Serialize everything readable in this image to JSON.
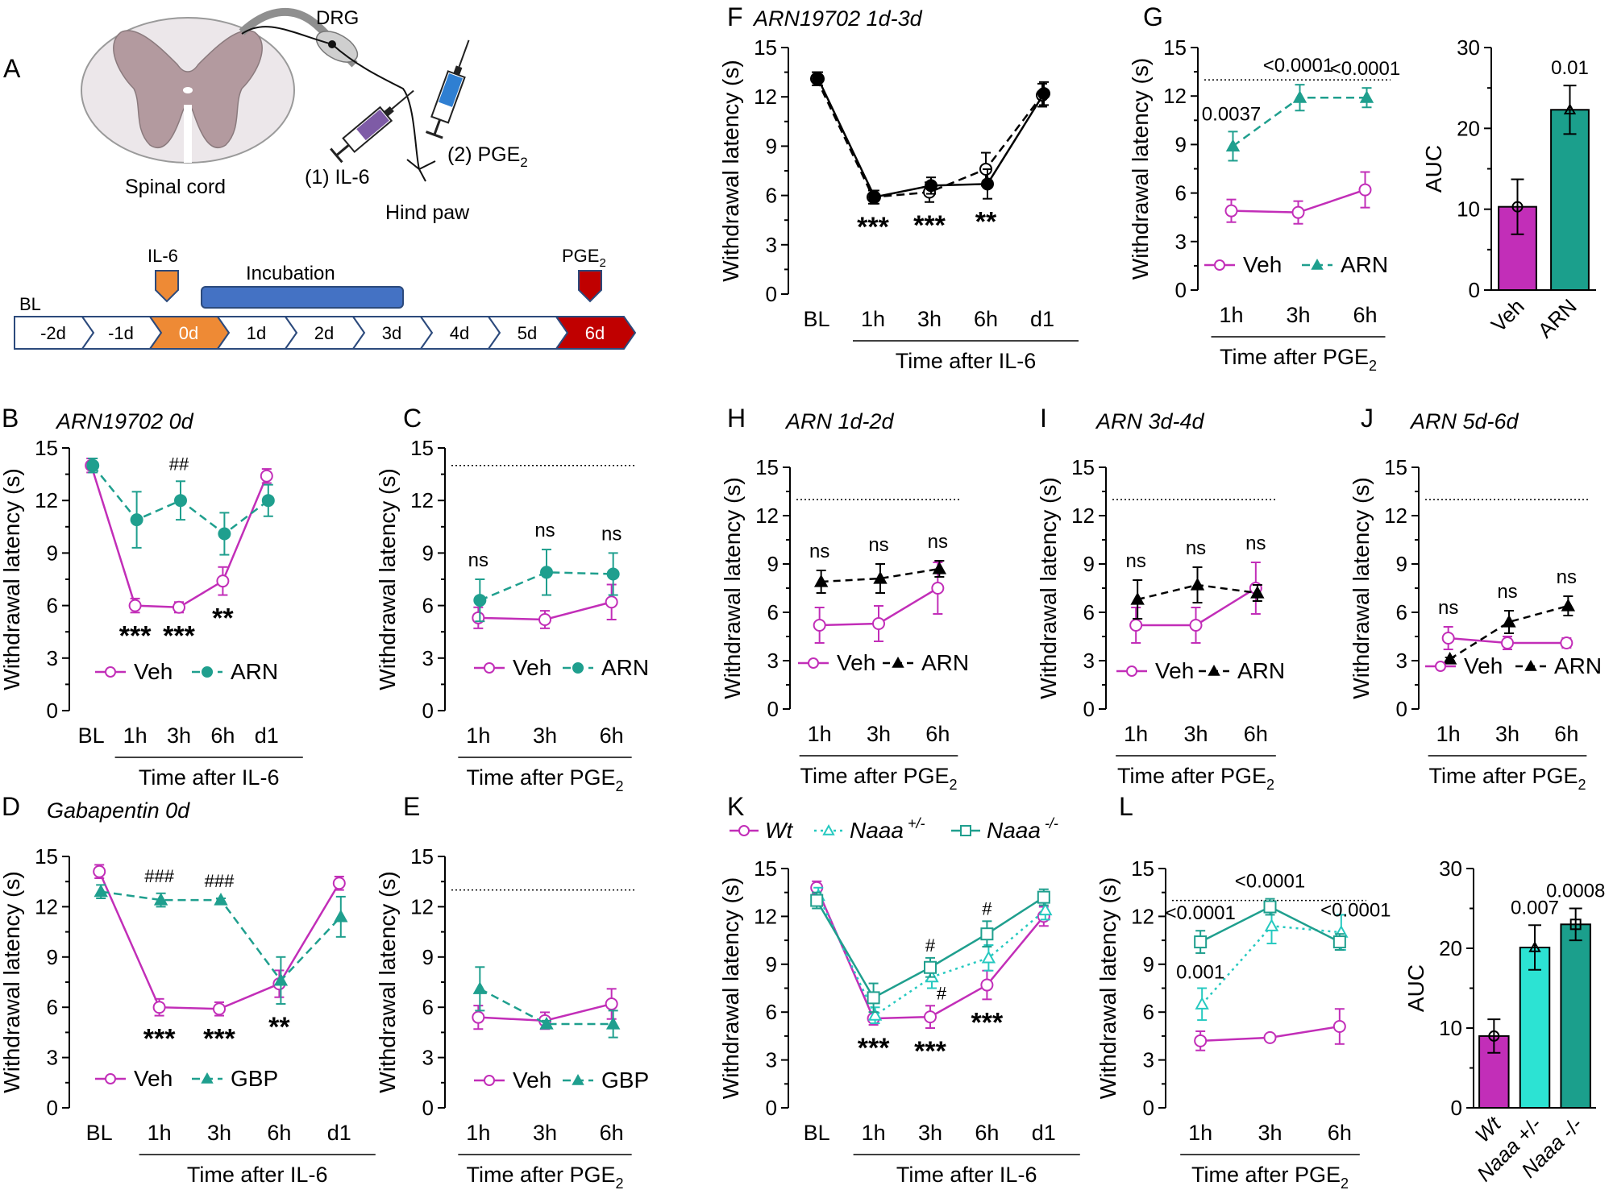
{
  "colors": {
    "veh": "#c22eb8",
    "arn": "#1f9f8e",
    "naaa_het": "#26c9c0",
    "naaa_ko": "#1f9f8e",
    "black": "#000000",
    "bar_veh": "#c22eb8",
    "bar_arn": "#1b9f8c",
    "bar_het": "#2ce3d3",
    "bar_ko": "#1b9f8c"
  },
  "panel_a": {
    "letter": "A",
    "labels": {
      "drg": "DRG",
      "spinal_cord": "Spinal cord",
      "il6_injection": "(1) IL-6",
      "pge2_injection": "(2) PGE",
      "pge2_sub": "2",
      "hind_paw": "Hind paw"
    },
    "timeline": {
      "bl": "BL",
      "il6": "IL-6",
      "incubation": "Incubation",
      "pge2": "PGE",
      "pge2_sub": "2",
      "days": [
        "-2d",
        "-1d",
        "0d",
        "1d",
        "2d",
        "3d",
        "4d",
        "5d",
        "6d"
      ]
    }
  },
  "chart_data": [
    {
      "id": "B",
      "type": "line",
      "letter": "B",
      "title": "ARN19702 0d",
      "ylabel": "Withdrawal latency (s)",
      "ylim": [
        0,
        15
      ],
      "yticks": [
        0,
        3,
        6,
        9,
        12,
        15
      ],
      "categories": [
        "BL",
        "1h",
        "3h",
        "6h",
        "d1"
      ],
      "xlabel": "Time after IL-6",
      "series": [
        {
          "name": "Veh",
          "values": [
            14.0,
            6.0,
            5.9,
            7.4,
            13.4
          ],
          "errors": [
            0.4,
            0.4,
            0.3,
            0.8,
            0.4
          ]
        },
        {
          "name": "ARN",
          "values": [
            14.0,
            10.9,
            12.0,
            10.1,
            12.0
          ],
          "errors": [
            0.4,
            1.6,
            1.1,
            1.2,
            0.9
          ]
        }
      ],
      "annotations": [
        {
          "x": "1h",
          "text": "***"
        },
        {
          "x": "3h",
          "text": "***"
        },
        {
          "x": "6h",
          "text": "**"
        },
        {
          "x": "3h",
          "text": "##"
        }
      ]
    },
    {
      "id": "C",
      "type": "line",
      "letter": "C",
      "title": "",
      "ylabel": "Withdrawal latency (s)",
      "ylim": [
        0,
        15
      ],
      "yticks": [
        0,
        3,
        6,
        9,
        12,
        15
      ],
      "categories": [
        "1h",
        "3h",
        "6h"
      ],
      "xlabel": "Time after PGE",
      "xlabel_sub": "2",
      "baseline": 14.0,
      "series": [
        {
          "name": "Veh",
          "values": [
            5.3,
            5.2,
            6.2
          ],
          "errors": [
            0.6,
            0.5,
            1.0
          ]
        },
        {
          "name": "ARN",
          "values": [
            6.3,
            7.9,
            7.8
          ],
          "errors": [
            1.2,
            1.3,
            1.2
          ]
        }
      ],
      "annotations": [
        {
          "x": "1h",
          "text": "ns"
        },
        {
          "x": "3h",
          "text": "ns"
        },
        {
          "x": "6h",
          "text": "ns"
        }
      ]
    },
    {
      "id": "D",
      "type": "line",
      "letter": "D",
      "title": "Gabapentin 0d",
      "ylabel": "Withdrawal latency (s)",
      "ylim": [
        0,
        15
      ],
      "yticks": [
        0,
        3,
        6,
        9,
        12,
        15
      ],
      "categories": [
        "BL",
        "1h",
        "3h",
        "6h",
        "d1"
      ],
      "xlabel": "Time after IL-6",
      "series": [
        {
          "name": "Veh",
          "values": [
            14.1,
            6.0,
            5.9,
            7.4,
            13.4
          ],
          "errors": [
            0.4,
            0.5,
            0.4,
            0.8,
            0.4
          ]
        },
        {
          "name": "GBP",
          "values": [
            12.9,
            12.4,
            12.4,
            7.6,
            11.4
          ],
          "errors": [
            0.4,
            0.4,
            0.1,
            1.4,
            1.2
          ]
        }
      ],
      "annotations": [
        {
          "x": "1h",
          "text": "***"
        },
        {
          "x": "3h",
          "text": "***"
        },
        {
          "x": "6h",
          "text": "**"
        },
        {
          "x": "1h",
          "text": "###"
        },
        {
          "x": "3h",
          "text": "###"
        }
      ]
    },
    {
      "id": "E",
      "type": "line",
      "letter": "E",
      "title": "",
      "ylabel": "Withdrawal latency (s)",
      "ylim": [
        0,
        15
      ],
      "yticks": [
        0,
        3,
        6,
        9,
        12,
        15
      ],
      "categories": [
        "1h",
        "3h",
        "6h"
      ],
      "xlabel": "Time after PGE",
      "xlabel_sub": "2",
      "baseline": 13.0,
      "series": [
        {
          "name": "Veh",
          "values": [
            5.4,
            5.2,
            6.2
          ],
          "errors": [
            0.7,
            0.5,
            0.9
          ]
        },
        {
          "name": "GBP",
          "values": [
            7.1,
            5.0,
            5.0
          ],
          "errors": [
            1.3,
            0.2,
            0.8
          ]
        }
      ],
      "annotations": []
    },
    {
      "id": "F",
      "type": "line",
      "letter": "F",
      "title": "ARN19702 1d-3d",
      "ylabel": "Withdrawal latency (s)",
      "ylim": [
        0,
        15
      ],
      "yticks": [
        0,
        3,
        6,
        9,
        12,
        15
      ],
      "categories": [
        "BL",
        "1h",
        "3h",
        "6h",
        "d1"
      ],
      "xlabel": "Time after IL-6",
      "series": [
        {
          "name": "Veh",
          "values": [
            13.1,
            5.9,
            6.2,
            7.6,
            12.1
          ],
          "errors": [
            0.4,
            0.4,
            0.6,
            1.0,
            0.7
          ]
        },
        {
          "name": "ARN",
          "values": [
            13.1,
            5.9,
            6.6,
            6.7,
            12.2
          ],
          "errors": [
            0.4,
            0.4,
            0.5,
            0.9,
            0.7
          ]
        }
      ],
      "annotations": [
        {
          "x": "1h",
          "text": "***"
        },
        {
          "x": "3h",
          "text": "***"
        },
        {
          "x": "6h",
          "text": "**"
        }
      ]
    },
    {
      "id": "G",
      "type": "line",
      "letter": "G",
      "title": "",
      "ylabel": "Withdrawal latency (s)",
      "ylim": [
        0,
        15
      ],
      "yticks": [
        0,
        3,
        6,
        9,
        12,
        15
      ],
      "categories": [
        "1h",
        "3h",
        "6h"
      ],
      "xlabel": "Time after PGE",
      "xlabel_sub": "2",
      "baseline": 13.0,
      "series": [
        {
          "name": "Veh",
          "values": [
            4.9,
            4.8,
            6.2
          ],
          "errors": [
            0.7,
            0.7,
            1.1
          ]
        },
        {
          "name": "ARN",
          "values": [
            8.9,
            11.9,
            11.9
          ],
          "errors": [
            0.9,
            0.8,
            0.6
          ]
        }
      ],
      "annotations": [
        {
          "x": "1h",
          "text": "0.0037"
        },
        {
          "x": "3h",
          "text": "<0.0001"
        },
        {
          "x": "6h",
          "text": "<0.0001"
        }
      ]
    },
    {
      "id": "G_auc",
      "type": "bar",
      "letter": "",
      "ylabel": "AUC",
      "ylim": [
        0,
        30
      ],
      "yticks": [
        0,
        10,
        20,
        30
      ],
      "categories": [
        "Veh",
        "ARN"
      ],
      "values": [
        10.3,
        22.3
      ],
      "errors": [
        3.4,
        3.0
      ],
      "annotations": [
        {
          "x": "ARN",
          "text": "0.01"
        }
      ]
    },
    {
      "id": "H",
      "type": "line",
      "letter": "H",
      "title": "ARN 1d-2d",
      "ylabel": "Withdrawal latency (s)",
      "ylim": [
        0,
        15
      ],
      "yticks": [
        0,
        3,
        6,
        9,
        12,
        15
      ],
      "categories": [
        "1h",
        "3h",
        "6h"
      ],
      "xlabel": "Time after PGE",
      "xlabel_sub": "2",
      "baseline": 13.0,
      "series": [
        {
          "name": "Veh",
          "values": [
            5.2,
            5.3,
            7.5
          ],
          "errors": [
            1.1,
            1.1,
            1.6
          ]
        },
        {
          "name": "ARN",
          "values": [
            7.9,
            8.1,
            8.7
          ],
          "errors": [
            0.7,
            0.9,
            0.5
          ]
        }
      ],
      "annotations": [
        {
          "x": "1h",
          "text": "ns"
        },
        {
          "x": "3h",
          "text": "ns"
        },
        {
          "x": "6h",
          "text": "ns"
        }
      ]
    },
    {
      "id": "I",
      "type": "line",
      "letter": "I",
      "title": "ARN 3d-4d",
      "ylabel": "Withdrawal latency (s)",
      "ylim": [
        0,
        15
      ],
      "yticks": [
        0,
        3,
        6,
        9,
        12,
        15
      ],
      "categories": [
        "1h",
        "3h",
        "6h"
      ],
      "xlabel": "Time after PGE",
      "xlabel_sub": "2",
      "baseline": 13.0,
      "series": [
        {
          "name": "Veh",
          "values": [
            5.2,
            5.2,
            7.5
          ],
          "errors": [
            1.1,
            1.1,
            1.6
          ]
        },
        {
          "name": "ARN",
          "values": [
            6.8,
            7.7,
            7.2
          ],
          "errors": [
            1.2,
            1.1,
            0.5
          ]
        }
      ],
      "annotations": [
        {
          "x": "1h",
          "text": "ns"
        },
        {
          "x": "3h",
          "text": "ns"
        },
        {
          "x": "6h",
          "text": "ns"
        }
      ]
    },
    {
      "id": "J",
      "type": "line",
      "letter": "J",
      "title": "ARN 5d-6d",
      "ylabel": "Withdrawal latency (s)",
      "ylim": [
        0,
        15
      ],
      "yticks": [
        0,
        3,
        6,
        9,
        12,
        15
      ],
      "categories": [
        "1h",
        "3h",
        "6h"
      ],
      "xlabel": "Time after PGE",
      "xlabel_sub": "2",
      "baseline": 13.0,
      "series": [
        {
          "name": "Veh",
          "values": [
            4.4,
            4.1,
            4.1
          ],
          "errors": [
            0.7,
            0.4,
            0.3
          ]
        },
        {
          "name": "ARN",
          "values": [
            3.1,
            5.4,
            6.4
          ],
          "errors": [
            0.1,
            0.7,
            0.6
          ]
        }
      ],
      "annotations": [
        {
          "x": "1h",
          "text": "ns"
        },
        {
          "x": "3h",
          "text": "ns"
        },
        {
          "x": "6h",
          "text": "ns"
        }
      ]
    },
    {
      "id": "K",
      "type": "line",
      "letter": "K",
      "title": "",
      "ylabel": "Withdrawal latency (s)",
      "ylim": [
        0,
        15
      ],
      "yticks": [
        0,
        3,
        6,
        9,
        12,
        15
      ],
      "categories": [
        "BL",
        "1h",
        "3h",
        "6h",
        "d1"
      ],
      "xlabel": "Time after IL-6",
      "legend": [
        {
          "name": "Wt"
        },
        {
          "name": "Naaa",
          "sup": "+/-"
        },
        {
          "name": "Naaa",
          "sup": "-/-"
        }
      ],
      "series": [
        {
          "name": "Wt",
          "values": [
            13.8,
            5.6,
            5.7,
            7.7,
            12.0
          ],
          "errors": [
            0.4,
            0.4,
            0.7,
            0.9,
            0.6
          ]
        },
        {
          "name": "Naaa +/-",
          "values": [
            13.3,
            5.8,
            8.2,
            9.4,
            12.4
          ],
          "errors": [
            0.5,
            0.5,
            0.7,
            0.8,
            0.6
          ]
        },
        {
          "name": "Naaa -/-",
          "values": [
            13.0,
            6.9,
            8.8,
            10.9,
            13.2
          ],
          "errors": [
            0.5,
            0.9,
            0.6,
            0.8,
            0.5
          ]
        }
      ],
      "annotations": [
        {
          "x": "1h",
          "text": "***"
        },
        {
          "x": "3h",
          "text": "***"
        },
        {
          "x": "6h",
          "text": "***"
        },
        {
          "x": "3h",
          "text": "#"
        },
        {
          "x": "3h",
          "text": "#"
        },
        {
          "x": "6h",
          "text": "#"
        }
      ]
    },
    {
      "id": "L",
      "type": "line",
      "letter": "L",
      "title": "",
      "ylabel": "Withdrawal latency (s)",
      "ylim": [
        0,
        15
      ],
      "yticks": [
        0,
        3,
        6,
        9,
        12,
        15
      ],
      "categories": [
        "1h",
        "3h",
        "6h"
      ],
      "xlabel": "Time after PGE",
      "xlabel_sub": "2",
      "baseline": 13.0,
      "series": [
        {
          "name": "Wt",
          "values": [
            4.2,
            4.4,
            5.1
          ],
          "errors": [
            0.6,
            0.1,
            1.1
          ]
        },
        {
          "name": "Naaa +/-",
          "values": [
            6.5,
            11.4,
            11.0
          ],
          "errors": [
            1.0,
            1.1,
            1.1
          ]
        },
        {
          "name": "Naaa -/-",
          "values": [
            10.4,
            12.6,
            10.4
          ],
          "errors": [
            0.7,
            0.5,
            0.5
          ]
        }
      ],
      "annotations": [
        {
          "x": "1h",
          "text": "<0.0001"
        },
        {
          "x": "3h",
          "text": "<0.0001"
        },
        {
          "x": "6h",
          "text": "<0.0001"
        },
        {
          "x": "1h",
          "text": "0.001"
        }
      ]
    },
    {
      "id": "L_auc",
      "type": "bar",
      "letter": "",
      "ylabel": "AUC",
      "ylim": [
        0,
        30
      ],
      "yticks": [
        0,
        10,
        20,
        30
      ],
      "categories": [
        "Wt",
        "Naaa +/-",
        "Naaa -/-"
      ],
      "values": [
        9.0,
        20.1,
        23.0
      ],
      "errors": [
        2.1,
        2.8,
        2.0
      ],
      "annotations": [
        {
          "x": "Naaa +/-",
          "text": "0.007"
        },
        {
          "x": "Naaa -/-",
          "text": "0.0008"
        }
      ]
    }
  ]
}
